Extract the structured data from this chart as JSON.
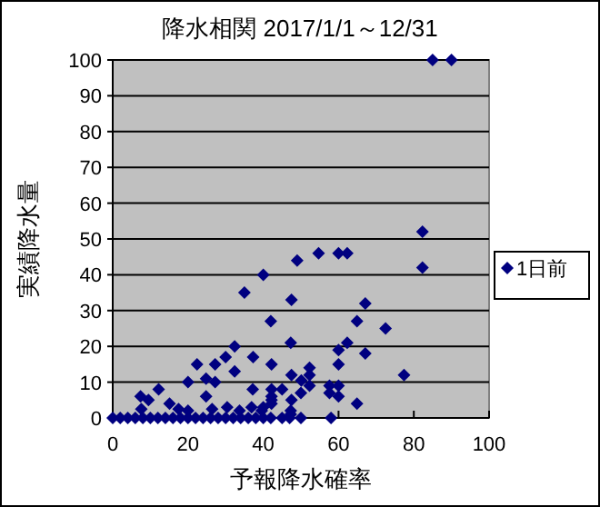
{
  "chart_data": {
    "type": "scatter",
    "title": "降水相関 2017/1/1～12/31",
    "xlabel": "予報降水確率",
    "ylabel": "実績降水量",
    "xlim": [
      0,
      100
    ],
    "ylim": [
      0,
      100
    ],
    "xticks": [
      0,
      20,
      40,
      60,
      80,
      100
    ],
    "yticks": [
      0,
      10,
      20,
      30,
      40,
      50,
      60,
      70,
      80,
      90,
      100
    ],
    "grid": "y",
    "legend": "right",
    "marker": "diamond",
    "series": [
      {
        "name": "1日前",
        "color": "#000080",
        "x": [
          0,
          2,
          4,
          6,
          8,
          10,
          12,
          14,
          16,
          18,
          20,
          22,
          24,
          26,
          28,
          30,
          32,
          34,
          36,
          38,
          40,
          42,
          45,
          47,
          50,
          58,
          40,
          35,
          42,
          47.5,
          49,
          32.4,
          47.3,
          22.4,
          27.2,
          30,
          37.3,
          32.4,
          42.2,
          24.8,
          27.2,
          20,
          12.2,
          7.4,
          9.5,
          47.5,
          37.2,
          42.2,
          45,
          24.8,
          15.1,
          7.6,
          17.5,
          30.4,
          33.7,
          36.9,
          40,
          42.2,
          47.5,
          26.4,
          20,
          85,
          90,
          82.3,
          82.3,
          54.7,
          60,
          62.3,
          67.1,
          64.9,
          72.5,
          62.3,
          60,
          67.1,
          60,
          52.3,
          52.3,
          77.4,
          50.1,
          52.3,
          57.6,
          60,
          50,
          57.6,
          60,
          64.9,
          47.3,
          47.3,
          39.6,
          42.2,
          42.2
        ],
        "values": [
          0,
          0,
          0,
          0,
          0,
          0,
          0,
          0,
          0,
          0,
          0,
          0,
          0,
          0,
          0,
          0,
          0,
          0,
          0,
          0,
          0,
          0,
          0,
          0,
          0,
          0,
          40,
          35,
          27,
          33,
          44,
          20,
          21,
          15,
          15,
          17,
          17,
          13,
          15,
          11,
          10,
          10,
          8,
          6,
          5,
          12,
          8,
          8,
          8,
          6,
          4,
          2.5,
          2.5,
          3,
          2,
          3,
          3,
          5,
          5,
          2.5,
          2,
          100,
          100,
          52,
          42,
          46,
          46,
          46,
          32,
          27,
          25,
          21,
          19,
          18,
          15,
          14,
          12,
          12,
          10.5,
          9,
          9,
          9,
          7,
          7,
          6,
          4,
          2,
          1,
          2,
          6,
          4
        ]
      }
    ]
  }
}
